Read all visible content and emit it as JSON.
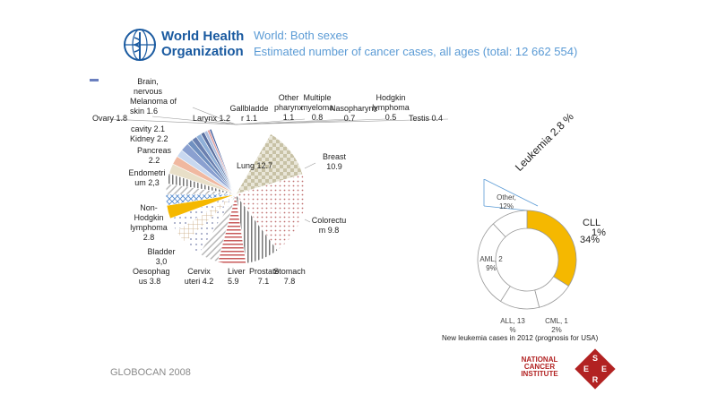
{
  "header": {
    "org_line1": "World Health",
    "org_line2": "Organization",
    "title": "World: Both sexes",
    "subtitle": "Estimated number of cancer cases, all ages (total: 12 662 554)"
  },
  "footer": {
    "source": "GLOBOCAN 2008"
  },
  "leukemia_label": "Leukemia 2.8 %",
  "donut_caption": "New leukemia cases in 2012 (prognosis for USA)",
  "nci_text": "NATIONAL CANCER INSTITUTE",
  "seer_letters": [
    "S",
    "E",
    "E",
    "R"
  ],
  "colors": {
    "accent": "#f5b800",
    "who_blue": "#1a5aa0",
    "header_blue": "#5b9bd5"
  },
  "chart_data": [
    {
      "type": "pie",
      "series": [
        {
          "values": [
            {
              "label": "Breast",
              "value": 10.9
            },
            {
              "label": "Colorectum",
              "value": 9.8
            },
            {
              "label": "Stomach",
              "value": 7.8
            },
            {
              "label": "Prostate",
              "value": 7.1
            },
            {
              "label": "Liver",
              "value": 5.9
            },
            {
              "label": "Cervix uteri",
              "value": 4.2
            },
            {
              "label": "Oesophagus",
              "value": 3.8
            },
            {
              "label": "Bladder",
              "value": 3.0
            },
            {
              "label": "Non-Hodgkin lymphoma",
              "value": 2.8
            },
            {
              "label": "Leukemia",
              "value": 2.8
            },
            {
              "label": "Endometrium",
              "value": 2.3
            },
            {
              "label": "Pancreas",
              "value": 2.2
            },
            {
              "label": "Kidney",
              "value": 2.2
            },
            {
              "label": "Oral cavity",
              "value": 2.1
            },
            {
              "label": "Brain, nervous system",
              "value": 1.8
            },
            {
              "label": "Melanoma of skin",
              "value": 1.6
            },
            {
              "label": "Ovary",
              "value": 1.8
            },
            {
              "label": "Larynx",
              "value": 1.2
            },
            {
              "label": "Gallbladder",
              "value": 1.1
            },
            {
              "label": "Other pharynx",
              "value": 1.1
            },
            {
              "label": "Multiple myeloma",
              "value": 0.8
            },
            {
              "label": "Nasopharynx",
              "value": 0.7
            },
            {
              "label": "Hodgkin lymphoma",
              "value": 0.5
            },
            {
              "label": "Testis",
              "value": 0.4
            },
            {
              "label": "Lung",
              "value": 12.7
            }
          ]
        }
      ],
      "labels_text": {
        "breast": "Breast 10.9",
        "colorectum": "Colorectu m 9.8",
        "stomach": "Stomach 7.8",
        "prostate": "Prostate 7.1",
        "liver": "Liver 5.9",
        "cervix": "Cervix uteri 4.2",
        "oesophagus": "Oesophag us 3.8",
        "bladder": "Bladder 3,0",
        "nhl": "Non- Hodgkin lymphoma 2.8",
        "endometrium": "Endometri um 2,3",
        "pancreas": "Pancreas 2.2",
        "kidney": "Kidney 2.2",
        "oral_cavity": "cavity 2.1",
        "brain": "Brain, nervous",
        "melanoma": "Melanoma of skin 1.6",
        "ovary": "Ovary 1.8",
        "larynx": "Larynx 1.2",
        "gallbladder": "Gallbladde r 1.1",
        "other_pharynx": "Other pharynx 1.1",
        "myeloma": "Multiple myeloma 0.8",
        "nasopharynx": "Nasopharynx 0.7",
        "hodgkin": "Hodgkin lymphoma 0.5",
        "testis": "Testis 0.4",
        "lung": "Lung 12.7"
      }
    },
    {
      "type": "pie",
      "series": [
        {
          "values": [
            {
              "label": "CLL",
              "value": 34
            },
            {
              "label": "CML",
              "value": 12
            },
            {
              "label": "ALL",
              "value": 13
            },
            {
              "label": "AML",
              "value": 29
            },
            {
              "label": "Other",
              "value": 12
            }
          ]
        }
      ],
      "labels_text": {
        "cll": "CLL",
        "cll_pct": "34%",
        "cll_over": "1%",
        "cml": "CML, 1 2%",
        "all": "ALL, 13 %",
        "aml": "AML, 2 9%",
        "other": "Other, 12%"
      }
    }
  ]
}
